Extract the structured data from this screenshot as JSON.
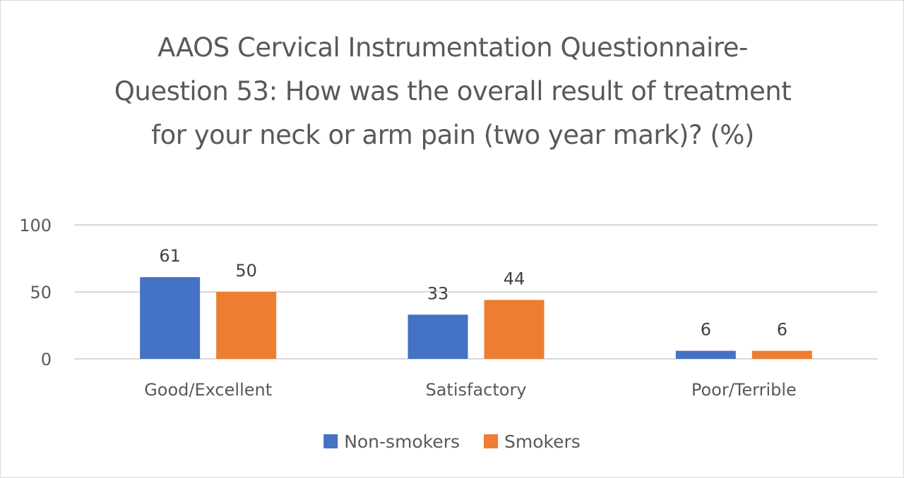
{
  "chart_data": {
    "type": "bar",
    "title": "AAOS Cervical Instrumentation Questionnaire- Question 53: How was the overall result of treatment for your neck or arm pain (two year mark)? (%)",
    "xlabel": "",
    "ylabel": "",
    "categories": [
      "Good/Excellent",
      "Satisfactory",
      "Poor/Terrible"
    ],
    "series": [
      {
        "name": "Non-smokers",
        "values": [
          61,
          33,
          6
        ],
        "color": "#4472c4"
      },
      {
        "name": "Smokers",
        "values": [
          50,
          44,
          6
        ],
        "color": "#ed7d31"
      }
    ],
    "ylim": [
      0,
      100
    ],
    "yticks": [
      0,
      50,
      100
    ],
    "grid": true,
    "gridline_color": "#d9d9d9",
    "legend_position": "bottom",
    "data_labels": true
  }
}
